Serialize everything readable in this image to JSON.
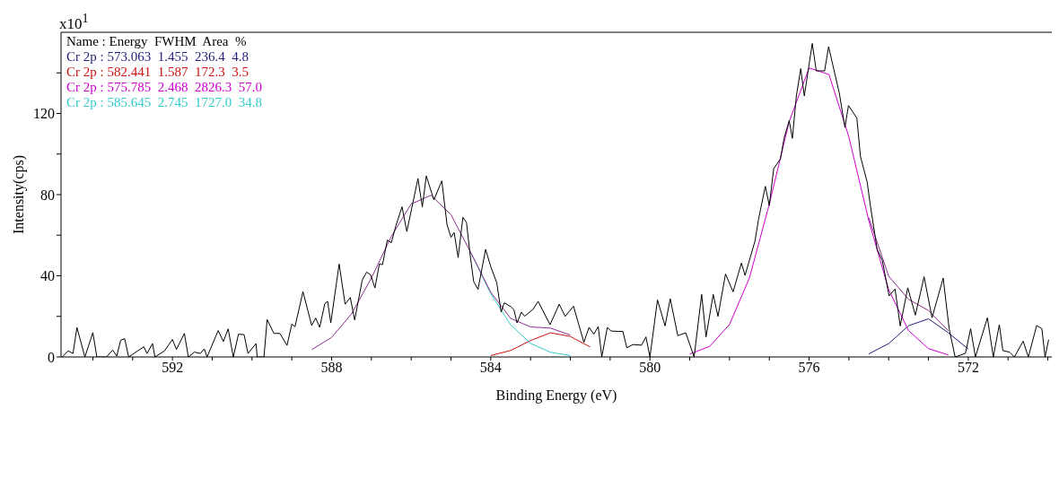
{
  "chart_data": {
    "type": "line",
    "xlabel": "Binding Energy (eV)",
    "ylabel": "Intensity(cps)",
    "legend_title": "Name : Energy  FWHM  Area  %",
    "annotations": [
      "x10$^{1}$"
    ],
    "legend": "top left",
    "grid": false,
    "xlim": [
      594.8,
      569.9
    ],
    "xticks": [
      {
        "value": 594,
        "label": null
      },
      {
        "value": 593,
        "label": null
      },
      592,
      {
        "value": 591,
        "label": null
      },
      {
        "value": 590,
        "label": null
      },
      {
        "value": 589,
        "label": null
      },
      588,
      {
        "value": 587,
        "label": null
      },
      {
        "value": 586,
        "label": null
      },
      {
        "value": 585,
        "label": null
      },
      584,
      {
        "value": 583,
        "label": null
      },
      {
        "value": 582,
        "label": null
      },
      {
        "value": 581,
        "label": null
      },
      580,
      {
        "value": 579,
        "label": null
      },
      {
        "value": 578,
        "label": null
      },
      {
        "value": 577,
        "label": null
      },
      576,
      {
        "value": 575,
        "label": null
      },
      {
        "value": 574,
        "label": null
      },
      {
        "value": 573,
        "label": null
      },
      572,
      {
        "value": 571,
        "label": null
      },
      {
        "value": 570,
        "label": null
      }
    ],
    "ylim": [
      0,
      160
    ],
    "yticks": [
      0,
      {
        "value": 20,
        "label": null
      },
      40,
      {
        "value": 60,
        "label": null
      },
      80,
      {
        "value": 100,
        "label": null
      },
      120,
      {
        "value": 140,
        "label": null
      }
    ],
    "series": [
      {
        "name": "Cr 2p : 573.063  1.455  236.4  4.8",
        "color": "#1f1f7a",
        "x": [
          574.5,
          574,
          573.5,
          573,
          572.5,
          572
        ],
        "values": [
          1.5,
          6.6,
          15.4,
          18.8,
          11.9,
          3.9
        ]
      },
      {
        "name": "Cr 2p : 582.441  1.587  172.3  3.5",
        "color": "#cc1111",
        "x": [
          584,
          583.5,
          583,
          582.5,
          582,
          581.5
        ],
        "values": [
          0.7,
          3.2,
          8.1,
          11.9,
          10.1,
          4.9
        ]
      },
      {
        "name": "Cr 2p : 575.785  2.468  2826.3  57.0",
        "color": "#cc00cc",
        "x": [
          579,
          578.5,
          578,
          577.5,
          577,
          576.5,
          576,
          575.5,
          575,
          574.5,
          574,
          573.5,
          573,
          572.5
        ],
        "values": [
          1.4,
          5.2,
          16,
          38.9,
          75.3,
          116,
          142.4,
          139.2,
          108.4,
          67.2,
          33.2,
          13,
          4.1,
          1
        ]
      },
      {
        "name": "Cr 2p : 585.645  2.745  1727.0  34.8",
        "color": "#33cccc",
        "x": [
          584.5,
          584,
          583.5,
          583,
          582.5,
          582
        ],
        "values": [
          51.3,
          31.2,
          15.8,
          6.7,
          2.3,
          0.7
        ]
      },
      {
        "color": "#8e2c8e",
        "x": [
          588.5,
          588,
          587.5,
          587,
          586.5,
          586,
          585.5,
          585,
          584.5,
          584,
          583.5,
          583,
          582.5,
          582,
          577,
          574.5,
          574,
          573.5,
          573,
          572.5
        ],
        "values": [
          3.6,
          9.6,
          21.2,
          38.9,
          59.4,
          75.4,
          79.7,
          70.1,
          51.4,
          31.9,
          19,
          14.8,
          14.2,
          10.8,
          null,
          68.7,
          39.8,
          28.4,
          22.9,
          12.9
        ]
      },
      {
        "color": "#000000",
        "x": [
          594.77,
          594.62,
          594.5,
          594.4,
          594.2,
          594.0,
          593.9,
          593.66,
          593.5,
          593.4,
          593.3,
          593.2,
          593.1,
          592.72,
          592.64,
          592.5,
          592.44,
          592.2,
          592.0,
          591.9,
          591.7,
          591.6,
          591.45,
          591.3,
          591.2,
          591.13,
          590.85,
          590.72,
          590.6,
          590.47,
          590.34,
          590.2,
          590.1,
          589.9,
          589.87,
          589.7,
          589.62,
          589.45,
          589.3,
          589.12,
          589.0,
          588.92,
          588.72,
          588.5,
          588.4,
          588.3,
          588.17,
          588.1,
          588.02,
          587.81,
          587.66,
          587.53,
          587.42,
          587.23,
          587.12,
          587.02,
          586.91,
          586.8,
          586.72,
          586.6,
          586.5,
          586.38,
          586.23,
          586.11,
          586.0,
          585.83,
          585.72,
          585.62,
          585.43,
          585.23,
          585.1,
          585.0,
          584.92,
          584.82,
          584.7,
          584.61,
          584.51,
          584.43,
          584.32,
          584.13,
          584.0,
          583.85,
          583.74,
          583.66,
          583.49,
          583.42,
          583.34,
          583.23,
          583.15,
          582.94,
          582.81,
          582.51,
          582.28,
          582.13,
          581.92,
          581.66,
          581.53,
          581.41,
          581.3,
          581.21,
          581.07,
          580.98,
          580.81,
          580.68,
          580.58,
          580.43,
          580.21,
          580.1,
          580.0,
          579.81,
          579.62,
          579.49,
          579.3,
          579.1,
          578.89,
          578.7,
          578.59,
          578.41,
          578.29,
          578.1,
          577.91,
          577.7,
          577.61,
          577.36,
          577.27,
          577.1,
          577.0,
          576.89,
          576.72,
          576.63,
          576.5,
          576.42,
          576.32,
          576.21,
          576.12,
          575.92,
          575.82,
          575.61,
          575.51,
          575.24,
          575.1,
          575.01,
          574.8,
          574.71,
          574.54,
          574.46,
          574.29,
          574.16,
          573.99,
          573.84,
          573.71,
          573.52,
          573.33,
          573.11,
          572.91,
          572.63,
          572.48,
          572.33,
          572.07,
          571.94,
          571.82,
          571.52,
          571.37,
          571.22,
          571.13,
          570.96,
          570.84,
          570.62,
          570.49,
          570.28,
          570.15,
          570.07,
          569.98
        ],
        "values": [
          0,
          3,
          1.7,
          14.5,
          0,
          12,
          0,
          0,
          3.4,
          0.4,
          8.3,
          9,
          0,
          5,
          1.7,
          6.6,
          0,
          3,
          8.6,
          3.7,
          11.6,
          0,
          2.4,
          1.7,
          4,
          0,
          13,
          7.6,
          13.8,
          0,
          11.2,
          11,
          1.7,
          6.6,
          0,
          0,
          18.4,
          11.6,
          11.6,
          5.7,
          16.2,
          14.9,
          32.2,
          15.5,
          19.2,
          14.6,
          26.3,
          27.4,
          16.8,
          45.8,
          26,
          29.3,
          18.2,
          37.9,
          41.8,
          40.5,
          34,
          45.8,
          45.5,
          57.6,
          56.3,
          64.9,
          74,
          61.8,
          72,
          87.9,
          74,
          89.2,
          77.4,
          86.8,
          65.3,
          59,
          61.3,
          49,
          68.8,
          66.2,
          49,
          37.2,
          33.3,
          53,
          44.5,
          36.6,
          22.1,
          26.7,
          24.7,
          23.4,
          16.8,
          22.1,
          20.1,
          23.4,
          27.4,
          15.9,
          26,
          20,
          25,
          7.2,
          14.6,
          11.2,
          15,
          0,
          14.6,
          12.8,
          12.6,
          12.6,
          4.5,
          6.1,
          5.8,
          9.9,
          0,
          28.1,
          15.3,
          28.7,
          10.5,
          11.9,
          0,
          30.8,
          9.9,
          30.8,
          20,
          40.9,
          32.1,
          46.3,
          40.2,
          57.1,
          67.9,
          84.1,
          74.6,
          92.8,
          97.6,
          107.7,
          116.5,
          107.7,
          128.6,
          142.1,
          128.6,
          154.5,
          141,
          141,
          152.9,
          130,
          113.1,
          123.9,
          117.8,
          98.9,
          86.1,
          74.6,
          53,
          47.6,
          30.1,
          33.5,
          15.3,
          34.1,
          20.6,
          39.5,
          19.3,
          38.9,
          13.9,
          0,
          1.8,
          13.9,
          0,
          19.3,
          0,
          15.9,
          3.1,
          2.4,
          0,
          7.8,
          0,
          15.5,
          13.9,
          0,
          8.5
        ]
      }
    ]
  }
}
